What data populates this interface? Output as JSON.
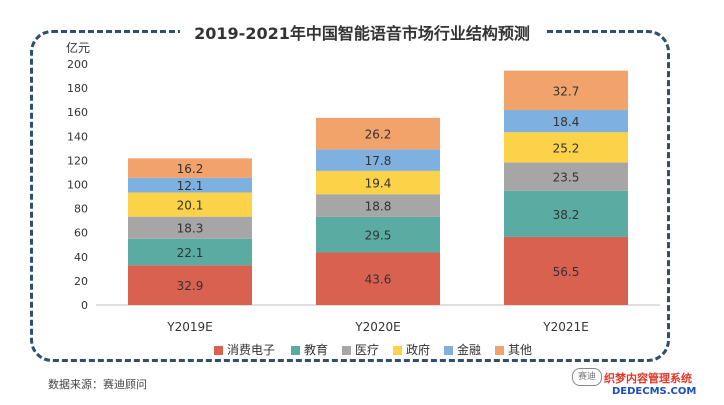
{
  "source_note": "数据来源：赛迪顾问",
  "watermark": {
    "badge": "赛迪",
    "line1": "织梦内容管理系统",
    "line2": "DEDECMS.COM"
  },
  "chart_data": {
    "type": "bar",
    "stacked": true,
    "title": "2019-2021年中国智能语音市场行业结构预测",
    "ylabel": "亿元",
    "xlabel": "",
    "ylim": [
      0,
      200
    ],
    "yticks": [
      0,
      20,
      40,
      60,
      80,
      100,
      120,
      140,
      160,
      180,
      200
    ],
    "categories": [
      "Y2019E",
      "Y2020E",
      "Y2021E"
    ],
    "legend_position": "bottom",
    "series": [
      {
        "name": "消费电子",
        "color": "#d9614f",
        "values": [
          32.9,
          43.6,
          56.5
        ]
      },
      {
        "name": "教育",
        "color": "#5aaba2",
        "values": [
          22.1,
          29.5,
          38.2
        ]
      },
      {
        "name": "医疗",
        "color": "#a6a6a6",
        "values": [
          18.3,
          18.8,
          23.5
        ]
      },
      {
        "name": "政府",
        "color": "#fbd248",
        "values": [
          20.1,
          19.4,
          25.2
        ]
      },
      {
        "name": "金融",
        "color": "#7fb1e0",
        "values": [
          12.1,
          17.8,
          18.4
        ]
      },
      {
        "name": "其他",
        "color": "#f2a26b",
        "values": [
          16.2,
          26.2,
          32.7
        ]
      }
    ]
  }
}
